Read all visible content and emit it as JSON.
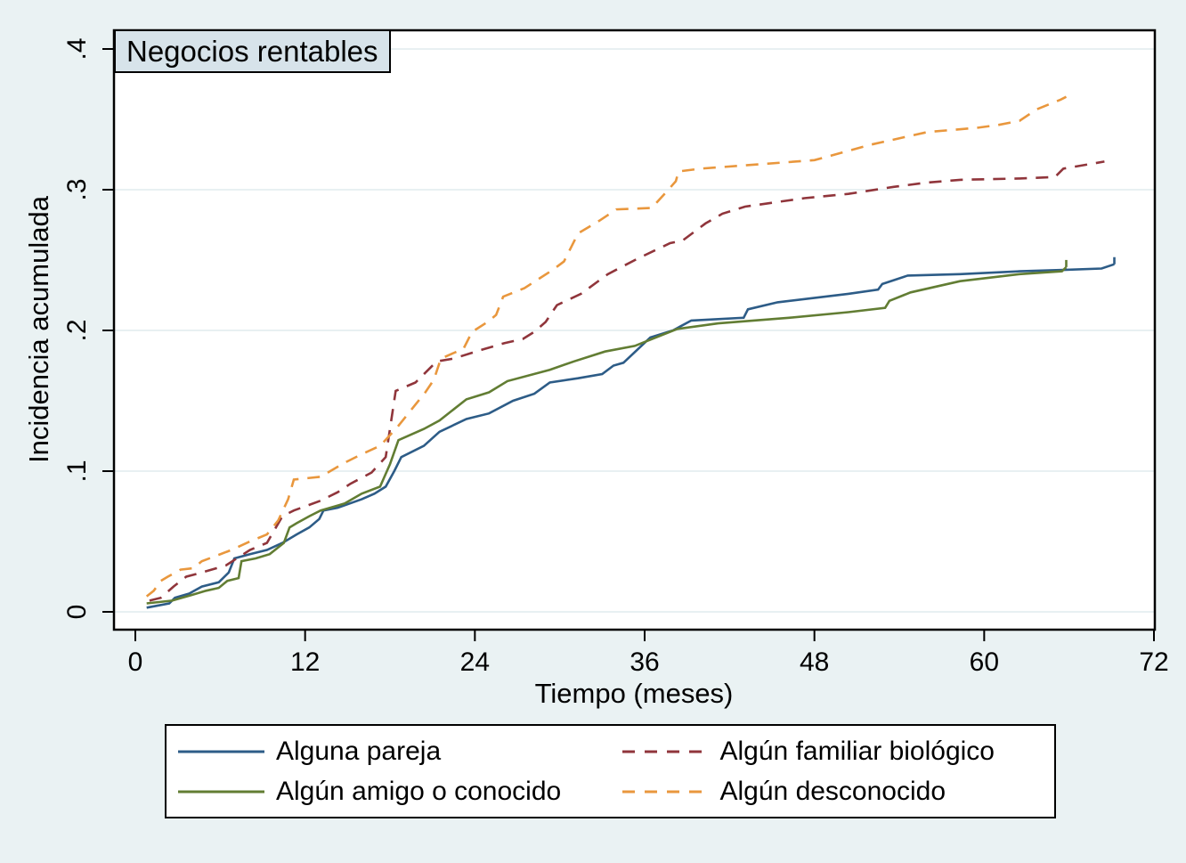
{
  "chart_data": {
    "type": "line",
    "title": "Negocios rentables",
    "xlabel": "Tiempo (meses)",
    "ylabel": "Incidencia acumulada",
    "x_ticks": [
      "0",
      "12",
      "24",
      "36",
      "48",
      "60",
      "72"
    ],
    "x_tick_values": [
      0,
      12,
      24,
      36,
      48,
      60,
      72
    ],
    "y_ticks": [
      "0",
      ".1",
      ".2",
      ".3",
      ".4"
    ],
    "y_tick_values": [
      0,
      0.1,
      0.2,
      0.3,
      0.4
    ],
    "xlim": [
      0,
      72
    ],
    "ylim": [
      0,
      0.4
    ],
    "grid": true,
    "legend_position": "bottom",
    "colors": {
      "background": "#eaf2f3",
      "plot_background": "#ffffff",
      "gridline": "#e0ebed",
      "axis": "#000000",
      "title_box_bg": "#d7e3ea",
      "legend_bg": "#ffffff"
    },
    "series": [
      {
        "name": "Alguna pareja",
        "color": "#2d5c87",
        "style": "solid",
        "points": [
          [
            0.8,
            0.003
          ],
          [
            2.4,
            0.006
          ],
          [
            2.8,
            0.01
          ],
          [
            3.8,
            0.013
          ],
          [
            4.7,
            0.018
          ],
          [
            5.9,
            0.021
          ],
          [
            6.6,
            0.028
          ],
          [
            7.0,
            0.038
          ],
          [
            8.1,
            0.041
          ],
          [
            9.3,
            0.044
          ],
          [
            10.4,
            0.049
          ],
          [
            11.4,
            0.055
          ],
          [
            12.3,
            0.06
          ],
          [
            13.0,
            0.066
          ],
          [
            13.3,
            0.072
          ],
          [
            14.3,
            0.074
          ],
          [
            16.0,
            0.08
          ],
          [
            16.9,
            0.084
          ],
          [
            17.7,
            0.089
          ],
          [
            18.3,
            0.1
          ],
          [
            18.8,
            0.11
          ],
          [
            20.4,
            0.118
          ],
          [
            21.5,
            0.128
          ],
          [
            23.4,
            0.137
          ],
          [
            25.0,
            0.141
          ],
          [
            26.7,
            0.15
          ],
          [
            28.2,
            0.155
          ],
          [
            29.3,
            0.163
          ],
          [
            31.3,
            0.166
          ],
          [
            33.0,
            0.169
          ],
          [
            33.8,
            0.175
          ],
          [
            34.5,
            0.177
          ],
          [
            36.4,
            0.195
          ],
          [
            38.0,
            0.2
          ],
          [
            39.3,
            0.207
          ],
          [
            43.0,
            0.209
          ],
          [
            43.3,
            0.215
          ],
          [
            45.4,
            0.22
          ],
          [
            50.4,
            0.226
          ],
          [
            52.5,
            0.229
          ],
          [
            52.8,
            0.233
          ],
          [
            54.6,
            0.239
          ],
          [
            58.3,
            0.24
          ],
          [
            62.5,
            0.242
          ],
          [
            65.6,
            0.243
          ],
          [
            68.3,
            0.244
          ],
          [
            69.2,
            0.247
          ]
        ]
      },
      {
        "name": "Algún amigo o conocido",
        "color": "#627d33",
        "style": "solid",
        "points": [
          [
            0.8,
            0.006
          ],
          [
            2.6,
            0.008
          ],
          [
            4.0,
            0.012
          ],
          [
            5.0,
            0.015
          ],
          [
            5.9,
            0.017
          ],
          [
            6.5,
            0.022
          ],
          [
            7.3,
            0.024
          ],
          [
            7.5,
            0.036
          ],
          [
            8.5,
            0.038
          ],
          [
            9.5,
            0.041
          ],
          [
            10.5,
            0.049
          ],
          [
            10.9,
            0.06
          ],
          [
            11.4,
            0.063
          ],
          [
            12.3,
            0.068
          ],
          [
            13.1,
            0.072
          ],
          [
            14.8,
            0.077
          ],
          [
            16.0,
            0.084
          ],
          [
            17.3,
            0.089
          ],
          [
            18.0,
            0.105
          ],
          [
            18.6,
            0.122
          ],
          [
            20.4,
            0.13
          ],
          [
            21.5,
            0.136
          ],
          [
            23.4,
            0.151
          ],
          [
            25.0,
            0.156
          ],
          [
            26.3,
            0.164
          ],
          [
            29.3,
            0.172
          ],
          [
            31.0,
            0.178
          ],
          [
            33.2,
            0.185
          ],
          [
            35.3,
            0.189
          ],
          [
            38.3,
            0.201
          ],
          [
            41.2,
            0.205
          ],
          [
            46.2,
            0.209
          ],
          [
            50.4,
            0.213
          ],
          [
            53.0,
            0.216
          ],
          [
            53.3,
            0.221
          ],
          [
            54.8,
            0.227
          ],
          [
            58.3,
            0.235
          ],
          [
            62.5,
            0.24
          ],
          [
            65.5,
            0.242
          ],
          [
            65.8,
            0.245
          ]
        ]
      },
      {
        "name": "Algún familiar biológico",
        "color": "#90353b",
        "style": "dashed",
        "points": [
          [
            1.0,
            0.008
          ],
          [
            1.8,
            0.01
          ],
          [
            2.7,
            0.018
          ],
          [
            3.6,
            0.025
          ],
          [
            4.7,
            0.028
          ],
          [
            6.4,
            0.033
          ],
          [
            8.1,
            0.044
          ],
          [
            9.3,
            0.049
          ],
          [
            10.4,
            0.068
          ],
          [
            11.2,
            0.072
          ],
          [
            13.1,
            0.079
          ],
          [
            14.3,
            0.085
          ],
          [
            15.2,
            0.091
          ],
          [
            16.7,
            0.099
          ],
          [
            17.7,
            0.11
          ],
          [
            18.4,
            0.157
          ],
          [
            19.8,
            0.163
          ],
          [
            21.3,
            0.178
          ],
          [
            22.5,
            0.18
          ],
          [
            24.4,
            0.186
          ],
          [
            26.1,
            0.191
          ],
          [
            27.4,
            0.194
          ],
          [
            28.2,
            0.199
          ],
          [
            29.0,
            0.206
          ],
          [
            29.8,
            0.218
          ],
          [
            31.5,
            0.226
          ],
          [
            33.4,
            0.24
          ],
          [
            35.5,
            0.251
          ],
          [
            37.8,
            0.262
          ],
          [
            38.7,
            0.264
          ],
          [
            40.3,
            0.276
          ],
          [
            41.5,
            0.283
          ],
          [
            43.1,
            0.288
          ],
          [
            45.2,
            0.291
          ],
          [
            47.3,
            0.294
          ],
          [
            50.4,
            0.297
          ],
          [
            53.6,
            0.302
          ],
          [
            55.9,
            0.305
          ],
          [
            58.3,
            0.307
          ],
          [
            62.5,
            0.308
          ],
          [
            65.0,
            0.309
          ],
          [
            65.6,
            0.315
          ],
          [
            68.5,
            0.32
          ]
        ]
      },
      {
        "name": "Algún desconocido",
        "color": "#e9973d",
        "style": "dashed",
        "points": [
          [
            0.8,
            0.011
          ],
          [
            1.3,
            0.015
          ],
          [
            1.8,
            0.022
          ],
          [
            2.3,
            0.025
          ],
          [
            3.2,
            0.03
          ],
          [
            4.1,
            0.031
          ],
          [
            4.7,
            0.036
          ],
          [
            5.5,
            0.039
          ],
          [
            6.8,
            0.044
          ],
          [
            8.1,
            0.05
          ],
          [
            9.3,
            0.055
          ],
          [
            10.1,
            0.065
          ],
          [
            10.8,
            0.08
          ],
          [
            11.2,
            0.094
          ],
          [
            13.1,
            0.096
          ],
          [
            14.8,
            0.106
          ],
          [
            16.0,
            0.112
          ],
          [
            17.3,
            0.118
          ],
          [
            18.5,
            0.131
          ],
          [
            20.5,
            0.156
          ],
          [
            21.1,
            0.165
          ],
          [
            21.6,
            0.18
          ],
          [
            23.2,
            0.187
          ],
          [
            23.8,
            0.199
          ],
          [
            24.9,
            0.206
          ],
          [
            25.5,
            0.211
          ],
          [
            26.0,
            0.224
          ],
          [
            27.5,
            0.23
          ],
          [
            29.5,
            0.243
          ],
          [
            30.3,
            0.249
          ],
          [
            31.3,
            0.269
          ],
          [
            32.8,
            0.278
          ],
          [
            34.0,
            0.286
          ],
          [
            36.5,
            0.287
          ],
          [
            37.5,
            0.298
          ],
          [
            38.2,
            0.306
          ],
          [
            38.4,
            0.313
          ],
          [
            40.0,
            0.315
          ],
          [
            44.0,
            0.318
          ],
          [
            48.0,
            0.321
          ],
          [
            52.0,
            0.332
          ],
          [
            56.0,
            0.341
          ],
          [
            59.5,
            0.344
          ],
          [
            61.0,
            0.346
          ],
          [
            62.5,
            0.349
          ],
          [
            63.7,
            0.357
          ],
          [
            65.4,
            0.364
          ],
          [
            65.8,
            0.366
          ]
        ]
      }
    ]
  }
}
